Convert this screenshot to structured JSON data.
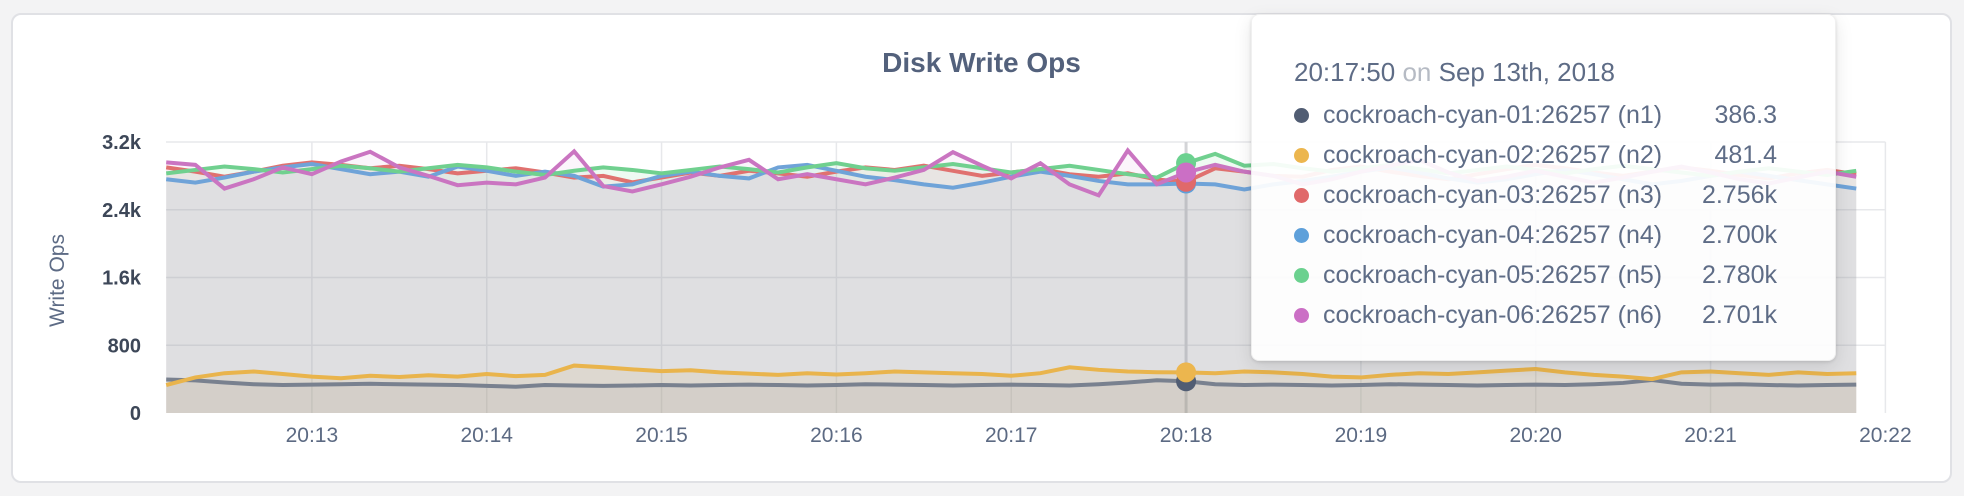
{
  "chart": {
    "title": "Disk Write Ops",
    "ylabel": "Write Ops"
  },
  "chart_data": {
    "type": "line",
    "title": "Disk Write Ops",
    "ylabel": "Write Ops",
    "x_start_time": "20:12:10",
    "x_step_seconds": 10,
    "x_tick_labels": [
      "20:13",
      "20:14",
      "20:15",
      "20:16",
      "20:17",
      "20:18",
      "20:19",
      "20:20",
      "20:21",
      "20:22"
    ],
    "y_ticks": [
      {
        "label": "0",
        "value": 0
      },
      {
        "label": "800",
        "value": 800
      },
      {
        "label": "1.6k",
        "value": 1600
      },
      {
        "label": "2.4k",
        "value": 2400
      },
      {
        "label": "3.2k",
        "value": 3200
      }
    ],
    "ylim": [
      0,
      3200
    ],
    "grid": true,
    "grid_color": "#e7e8eb",
    "hover_guideline_color": "#d3d4d7",
    "hover_index": 35,
    "series": [
      {
        "id": "n1",
        "name": "cockroach-cyan-01:26257 (n1)",
        "color": "#515d73",
        "line_color": "#79818f",
        "fill_opacity": 0.08,
        "values": [
          395,
          385,
          360,
          340,
          330,
          335,
          340,
          345,
          340,
          335,
          330,
          320,
          310,
          330,
          325,
          320,
          325,
          330,
          325,
          330,
          335,
          330,
          325,
          330,
          340,
          335,
          330,
          325,
          330,
          335,
          330,
          325,
          340,
          360,
          386.3,
          375,
          340,
          330,
          335,
          330,
          325,
          330,
          340,
          335,
          330,
          325,
          330,
          335,
          330,
          340,
          355,
          390,
          345,
          335,
          340,
          330,
          325,
          330,
          335
        ]
      },
      {
        "id": "n2",
        "name": "cockroach-cyan-02:26257 (n2)",
        "color": "#ecb64e",
        "line_color": "#e9b44c",
        "fill_opacity": 0.14,
        "values": [
          330,
          420,
          470,
          490,
          460,
          430,
          410,
          440,
          425,
          445,
          430,
          460,
          435,
          450,
          560,
          540,
          515,
          495,
          505,
          480,
          465,
          450,
          470,
          455,
          470,
          490,
          480,
          470,
          460,
          440,
          470,
          540,
          510,
          490,
          481.4,
          480,
          470,
          490,
          480,
          460,
          430,
          420,
          450,
          470,
          460,
          480,
          500,
          520,
          480,
          450,
          430,
          400,
          480,
          490,
          470,
          450,
          480,
          460,
          470
        ]
      },
      {
        "id": "n3",
        "name": "cockroach-cyan-03:26257 (n3)",
        "color": "#e0696a",
        "line_color": "#e0716f",
        "fill_opacity": 0.085,
        "values": [
          2900,
          2850,
          2790,
          2850,
          2920,
          2960,
          2930,
          2890,
          2920,
          2880,
          2830,
          2860,
          2890,
          2840,
          2780,
          2800,
          2724,
          2780,
          2840,
          2800,
          2860,
          2830,
          2790,
          2850,
          2900,
          2870,
          2920,
          2860,
          2800,
          2840,
          2880,
          2820,
          2790,
          2830,
          2756,
          2730,
          2890,
          2850,
          2800,
          2790,
          2870,
          2910,
          2850,
          2800,
          2760,
          2820,
          2880,
          2930,
          2890,
          2840,
          2800,
          2850,
          2900,
          2860,
          2810,
          2770,
          2830,
          2870,
          2820
        ]
      },
      {
        "id": "n4",
        "name": "cockroach-cyan-04:26257 (n4)",
        "color": "#5ea0da",
        "line_color": "#6fa3d8",
        "fill_opacity": 0.07,
        "values": [
          2760,
          2720,
          2780,
          2850,
          2900,
          2940,
          2880,
          2820,
          2850,
          2790,
          2910,
          2860,
          2800,
          2850,
          2800,
          2673,
          2700,
          2800,
          2850,
          2800,
          2770,
          2900,
          2930,
          2860,
          2790,
          2750,
          2700,
          2660,
          2720,
          2790,
          2850,
          2800,
          2740,
          2700,
          2700,
          2710,
          2700,
          2640,
          2700,
          2740,
          2790,
          2850,
          2900,
          2840,
          2770,
          2720,
          2760,
          2820,
          2870,
          2820,
          2760,
          2700,
          2740,
          2800,
          2850,
          2800,
          2750,
          2700,
          2650
        ]
      },
      {
        "id": "n5",
        "name": "cockroach-cyan-05:26257 (n5)",
        "color": "#6bd18f",
        "line_color": "#70d08f",
        "fill_opacity": 0.115,
        "values": [
          2830,
          2870,
          2910,
          2880,
          2840,
          2880,
          2920,
          2890,
          2850,
          2890,
          2930,
          2900,
          2850,
          2810,
          2860,
          2900,
          2870,
          2830,
          2870,
          2910,
          2880,
          2840,
          2900,
          2950,
          2890,
          2860,
          2900,
          2940,
          2890,
          2840,
          2880,
          2920,
          2870,
          2820,
          2780,
          2950,
          3060,
          2920,
          2940,
          2890,
          2850,
          2890,
          2930,
          2880,
          2830,
          2870,
          2910,
          2870,
          2830,
          2880,
          2920,
          2880,
          2840,
          2800,
          2850,
          2890,
          2850,
          2810,
          2860
        ]
      },
      {
        "id": "n6",
        "name": "cockroach-cyan-06:26257 (n6)",
        "color": "#cb6fc5",
        "line_color": "#ca75c1",
        "fill_opacity": 0.07,
        "values": [
          2960,
          2930,
          2650,
          2760,
          2900,
          2820,
          2970,
          3085,
          2900,
          2800,
          2690,
          2720,
          2700,
          2780,
          3090,
          2680,
          2616,
          2700,
          2790,
          2900,
          2990,
          2760,
          2820,
          2760,
          2700,
          2780,
          2870,
          3080,
          2920,
          2770,
          2950,
          2700,
          2570,
          3100,
          2701,
          2840,
          2930,
          2850,
          2800,
          2700,
          2760,
          2850,
          2920,
          2990,
          2840,
          2740,
          2790,
          2860,
          2790,
          2720,
          2780,
          2850,
          2910,
          2840,
          2760,
          2710,
          2780,
          2850,
          2790
        ]
      }
    ]
  },
  "tooltip": {
    "time": "20:17:50",
    "conjunction": "on",
    "date": "Sep 13th, 2018",
    "rows": [
      {
        "label": "cockroach-cyan-01:26257 (n1)",
        "value": "386.3",
        "color": "#515d73"
      },
      {
        "label": "cockroach-cyan-02:26257 (n2)",
        "value": "481.4",
        "color": "#ecb64e"
      },
      {
        "label": "cockroach-cyan-03:26257 (n3)",
        "value": "2.756k",
        "color": "#e0696a"
      },
      {
        "label": "cockroach-cyan-04:26257 (n4)",
        "value": "2.700k",
        "color": "#5ea0da"
      },
      {
        "label": "cockroach-cyan-05:26257 (n5)",
        "value": "2.780k",
        "color": "#6bd18f"
      },
      {
        "label": "cockroach-cyan-06:26257 (n6)",
        "value": "2.701k",
        "color": "#cb6fc5"
      }
    ]
  }
}
